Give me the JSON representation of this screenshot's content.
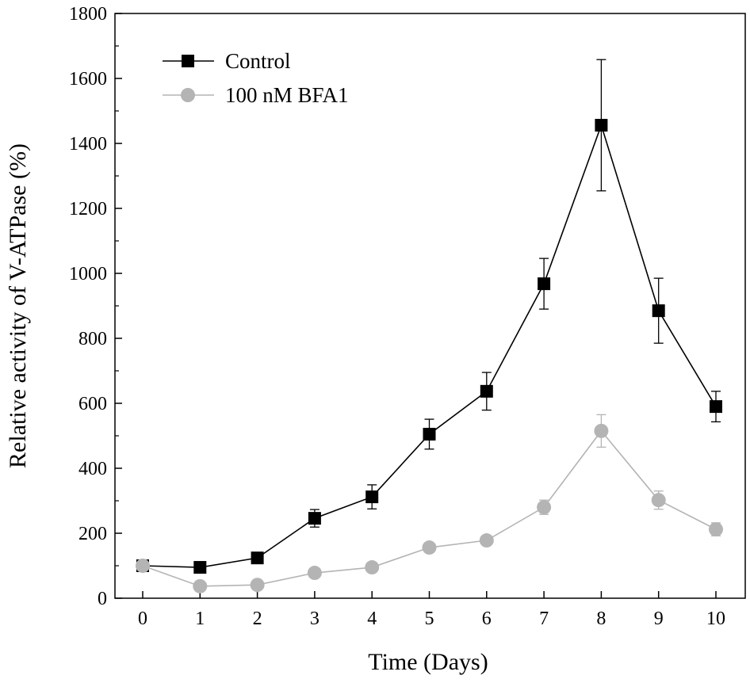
{
  "chart_data": {
    "type": "line",
    "title": "",
    "xlabel": "Time (Days)",
    "ylabel": "Relative activity of V-ATPase (%)",
    "xlim": [
      -0.5,
      10.5
    ],
    "ylim": [
      0,
      1800
    ],
    "xticks": [
      0,
      1,
      2,
      3,
      4,
      5,
      6,
      7,
      8,
      9,
      10
    ],
    "yticks": [
      0,
      200,
      400,
      600,
      800,
      1000,
      1200,
      1400,
      1600,
      1800
    ],
    "grid": false,
    "legend_position": "top-left",
    "x": [
      0,
      1,
      2,
      3,
      4,
      5,
      6,
      7,
      8,
      9,
      10
    ],
    "series": [
      {
        "name": "Control",
        "color": "#000000",
        "marker": "square",
        "values": [
          100,
          95,
          124,
          246,
          312,
          505,
          637,
          968,
          1456,
          885,
          590
        ],
        "errors": [
          8,
          6,
          8,
          27,
          37,
          46,
          58,
          78,
          202,
          100,
          47
        ]
      },
      {
        "name": "100 nM BFA1",
        "color": "#b4b4b4",
        "marker": "circle",
        "values": [
          100,
          37,
          41,
          78,
          95,
          156,
          178,
          280,
          515,
          302,
          212
        ],
        "errors": [
          10,
          5,
          5,
          6,
          6,
          8,
          10,
          22,
          50,
          28,
          20
        ]
      }
    ]
  }
}
